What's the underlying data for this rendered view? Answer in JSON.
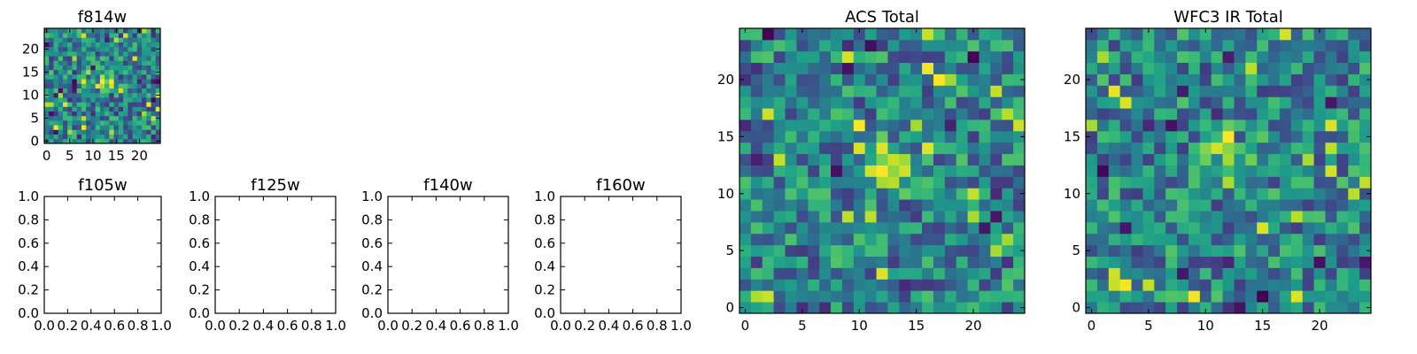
{
  "chart_data": [
    {
      "type": "heatmap",
      "title": "f814w",
      "xlabel": "",
      "ylabel": "",
      "xlim": [
        -0.5,
        24.5
      ],
      "ylim": [
        -0.5,
        24.5
      ],
      "xticks": [
        0,
        5,
        10,
        15,
        20
      ],
      "yticks": [
        0,
        5,
        10,
        15,
        20
      ],
      "grid_size": 25,
      "colormap": "viridis",
      "peak": {
        "x": 13,
        "y": 13,
        "value": 0.95
      },
      "note": "noisy image with bright compact source near center"
    },
    {
      "type": "heatmap",
      "title": "ACS Total",
      "xlabel": "",
      "ylabel": "",
      "xlim": [
        -0.5,
        24.5
      ],
      "ylim": [
        -0.5,
        24.5
      ],
      "xticks": [
        0,
        5,
        10,
        15,
        20
      ],
      "yticks": [
        0,
        5,
        10,
        15,
        20
      ],
      "grid_size": 25,
      "colormap": "viridis",
      "peak": {
        "x": 12.5,
        "y": 12.5,
        "value": 0.98
      }
    },
    {
      "type": "heatmap",
      "title": "WFC3 IR Total",
      "xlabel": "",
      "ylabel": "",
      "xlim": [
        -0.5,
        24.5
      ],
      "ylim": [
        -0.5,
        24.5
      ],
      "xticks": [
        0,
        5,
        10,
        15,
        20
      ],
      "yticks": [
        0,
        5,
        10,
        15,
        20
      ],
      "grid_size": 25,
      "colormap": "viridis",
      "peak": {
        "x": 12,
        "y": 14,
        "value": 0.9
      }
    },
    {
      "type": "line",
      "title": "f105w",
      "series": [],
      "xlim": [
        0.0,
        1.0
      ],
      "ylim": [
        0.0,
        1.0
      ],
      "xticks": [
        "0.0",
        "0.2",
        "0.4",
        "0.6",
        "0.8",
        "1.0"
      ],
      "yticks": [
        "0.0",
        "0.2",
        "0.4",
        "0.6",
        "0.8",
        "1.0"
      ]
    },
    {
      "type": "line",
      "title": "f125w",
      "series": [],
      "xlim": [
        0.0,
        1.0
      ],
      "ylim": [
        0.0,
        1.0
      ],
      "xticks": [
        "0.0",
        "0.2",
        "0.4",
        "0.6",
        "0.8",
        "1.0"
      ],
      "yticks": [
        "0.0",
        "0.2",
        "0.4",
        "0.6",
        "0.8",
        "1.0"
      ]
    },
    {
      "type": "line",
      "title": "f140w",
      "series": [],
      "xlim": [
        0.0,
        1.0
      ],
      "ylim": [
        0.0,
        1.0
      ],
      "xticks": [
        "0.0",
        "0.2",
        "0.4",
        "0.6",
        "0.8",
        "1.0"
      ],
      "yticks": [
        "0.0",
        "0.2",
        "0.4",
        "0.6",
        "0.8",
        "1.0"
      ]
    },
    {
      "type": "line",
      "title": "f160w",
      "series": [],
      "xlim": [
        0.0,
        1.0
      ],
      "ylim": [
        0.0,
        1.0
      ],
      "xticks": [
        "0.0",
        "0.2",
        "0.4",
        "0.6",
        "0.8",
        "1.0"
      ],
      "yticks": [
        "0.0",
        "0.2",
        "0.4",
        "0.6",
        "0.8",
        "1.0"
      ]
    }
  ]
}
